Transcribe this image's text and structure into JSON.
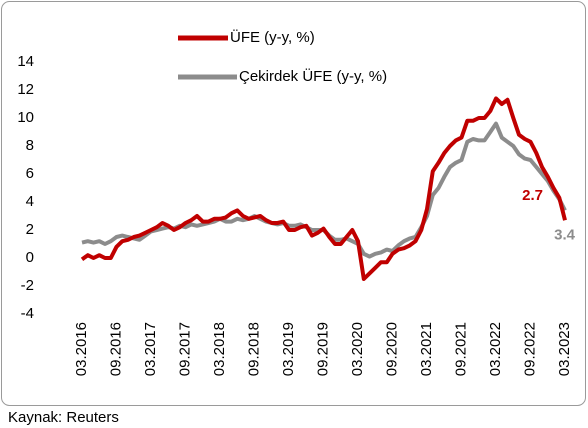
{
  "chart_data": {
    "type": "line",
    "legend_labels": true,
    "source": "Kaynak: Reuters",
    "categories": [
      "03.2016",
      null,
      null,
      null,
      null,
      null,
      "09.2016",
      null,
      null,
      null,
      null,
      null,
      "03.2017",
      null,
      null,
      null,
      null,
      null,
      "09.2017",
      null,
      null,
      null,
      null,
      null,
      "03.2018",
      null,
      null,
      null,
      null,
      null,
      "09.2018",
      null,
      null,
      null,
      null,
      null,
      "03.2019",
      null,
      null,
      null,
      null,
      null,
      "09.2019",
      null,
      null,
      null,
      null,
      null,
      "03.2020",
      null,
      null,
      null,
      null,
      null,
      "09.2020",
      null,
      null,
      null,
      null,
      null,
      "03.2021",
      null,
      null,
      null,
      null,
      null,
      "09.2021",
      null,
      null,
      null,
      null,
      null,
      "03.2022",
      null,
      null,
      null,
      null,
      null,
      "09.2022",
      null,
      null,
      null,
      null,
      null,
      "03.2023"
    ],
    "series": [
      {
        "name": "ÜFE (y-y, %)",
        "color": "#c00000",
        "values": [
          -0.1,
          0.2,
          0.0,
          0.2,
          0.0,
          0.0,
          0.8,
          1.2,
          1.3,
          1.5,
          1.6,
          1.8,
          2.0,
          2.2,
          2.5,
          2.3,
          2.0,
          2.2,
          2.5,
          2.7,
          3.0,
          2.6,
          2.6,
          2.8,
          2.8,
          2.9,
          3.2,
          3.4,
          3.0,
          2.8,
          2.9,
          3.0,
          2.7,
          2.5,
          2.5,
          2.6,
          2.0,
          2.0,
          2.2,
          2.3,
          1.6,
          1.8,
          2.1,
          1.5,
          1.0,
          1.0,
          1.5,
          2.0,
          1.2,
          -1.5,
          -1.1,
          -0.7,
          -0.3,
          -0.3,
          0.3,
          0.6,
          0.7,
          0.9,
          1.2,
          2.0,
          3.5,
          6.2,
          6.8,
          7.5,
          8.0,
          8.4,
          8.6,
          9.8,
          9.8,
          10.0,
          10.0,
          10.5,
          11.4,
          11.0,
          11.3,
          10.0,
          8.8,
          8.5,
          8.3,
          7.5,
          6.5,
          5.8,
          5.0,
          4.3,
          2.7
        ]
      },
      {
        "name": "Çekirdek ÜFE (y-y, %)",
        "color": "#8c8c8c",
        "values": [
          1.1,
          1.2,
          1.1,
          1.2,
          1.0,
          1.2,
          1.5,
          1.6,
          1.5,
          1.4,
          1.3,
          1.6,
          1.9,
          2.0,
          2.1,
          2.2,
          2.1,
          2.3,
          2.2,
          2.4,
          2.3,
          2.4,
          2.5,
          2.6,
          2.8,
          2.6,
          2.6,
          2.8,
          2.7,
          2.8,
          3.0,
          2.8,
          2.6,
          2.5,
          2.4,
          2.5,
          2.3,
          2.3,
          2.4,
          2.2,
          2.0,
          2.0,
          2.0,
          1.6,
          1.3,
          1.3,
          1.4,
          1.2,
          1.0,
          0.3,
          0.1,
          0.3,
          0.4,
          0.6,
          0.5,
          0.9,
          1.2,
          1.4,
          1.5,
          2.2,
          3.0,
          4.5,
          5.0,
          5.8,
          6.5,
          6.8,
          7.0,
          8.3,
          8.5,
          8.4,
          8.4,
          9.0,
          9.6,
          8.6,
          8.3,
          8.0,
          7.4,
          7.1,
          7.0,
          6.5,
          6.0,
          5.5,
          4.8,
          4.2,
          3.4
        ]
      }
    ],
    "ylim": [
      -4,
      14
    ],
    "yticks": [
      -4,
      -2,
      0,
      2,
      4,
      6,
      8,
      10,
      12,
      14
    ],
    "grid": false
  }
}
